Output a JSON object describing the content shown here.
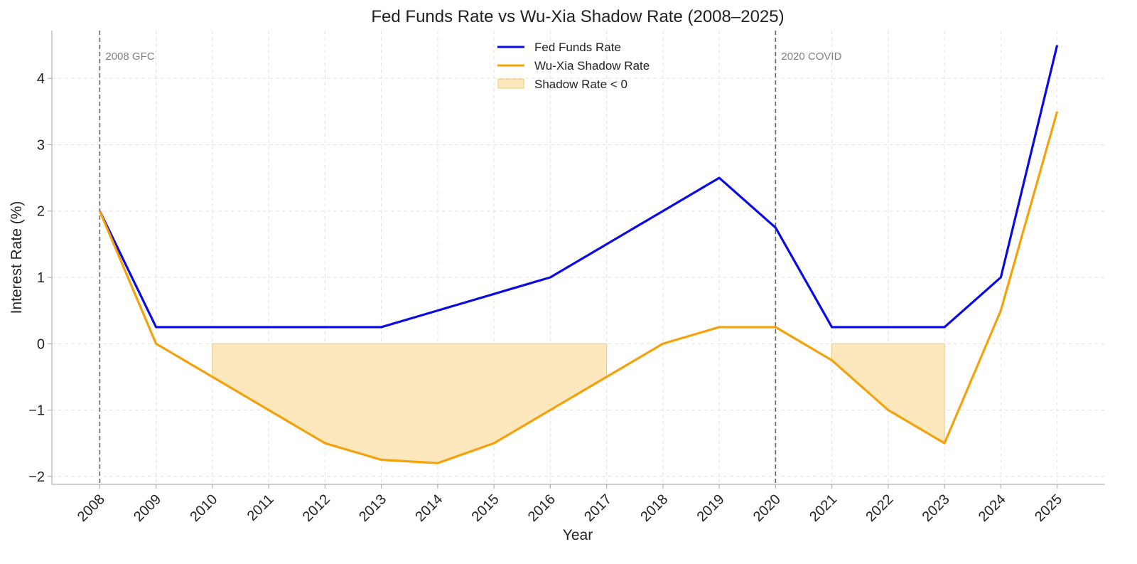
{
  "chart_data": {
    "type": "line",
    "title": "Fed Funds Rate vs Wu-Xia Shadow Rate (2008–2025)",
    "xlabel": "Year",
    "ylabel": "Interest Rate (%)",
    "x": [
      2008,
      2009,
      2010,
      2011,
      2012,
      2013,
      2014,
      2015,
      2016,
      2017,
      2018,
      2019,
      2020,
      2021,
      2022,
      2023,
      2024,
      2025
    ],
    "x_tick_labels": [
      "2008",
      "2009",
      "2010",
      "2011",
      "2012",
      "2013",
      "2014",
      "2015",
      "2016",
      "2017",
      "2018",
      "2019",
      "2020",
      "2021",
      "2022",
      "2023",
      "2024",
      "2025"
    ],
    "y_ticks": [
      -2,
      -1,
      0,
      1,
      2,
      3,
      4
    ],
    "y_tick_labels": [
      "−2",
      "−1",
      "0",
      "1",
      "2",
      "3",
      "4"
    ],
    "xlim": [
      2007.15,
      2025.85
    ],
    "ylim": [
      -2.12,
      4.72
    ],
    "grid": true,
    "legend_position": "top-center",
    "series": [
      {
        "name": "Fed Funds Rate",
        "color": "#0a0ae6",
        "values": [
          2.0,
          0.25,
          0.25,
          0.25,
          0.25,
          0.25,
          0.5,
          0.75,
          1.0,
          1.5,
          2.0,
          2.5,
          1.75,
          0.25,
          0.25,
          0.25,
          1.0,
          4.5
        ]
      },
      {
        "name": "Wu-Xia Shadow Rate",
        "color": "#f5a10b",
        "values": [
          2.0,
          0.0,
          -0.5,
          -1.0,
          -1.5,
          -1.75,
          -1.8,
          -1.5,
          -1.0,
          -0.5,
          0.0,
          0.25,
          0.25,
          -0.25,
          -1.0,
          -1.5,
          0.5,
          3.5
        ]
      }
    ],
    "fill_regions": {
      "name": "Shadow Rate < 0",
      "color": "#fde8bd",
      "edge_color": "#efc97a",
      "ranges": [
        [
          2010,
          2017
        ],
        [
          2021,
          2023
        ]
      ]
    },
    "annotations": [
      {
        "x": 2008,
        "text": "2008 GFC"
      },
      {
        "x": 2020,
        "text": "2020 COVID"
      }
    ]
  }
}
